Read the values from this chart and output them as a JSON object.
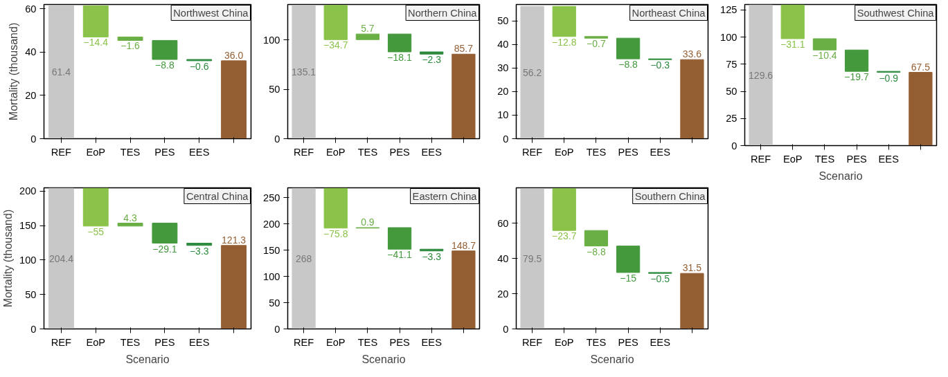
{
  "chart_data": [
    {
      "type": "bar",
      "title": "Northwest China",
      "ylabel": "Mortality (thousand)",
      "categories": [
        "REF",
        "EoP",
        "TES",
        "PES",
        "EES",
        null
      ],
      "values": [
        61.4,
        -14.4,
        -1.6,
        -8.8,
        -0.6,
        36.0
      ],
      "base": [
        0,
        61.4,
        47.0,
        45.4,
        36.6,
        0
      ],
      "value_labels": [
        "61.4",
        "−14.4",
        "−1.6",
        "−8.8",
        "−0.6",
        "36.0"
      ],
      "colors": [
        "#c8c8c8",
        "#8bc34a",
        "#6aaf45",
        "#43993c",
        "#2d8a3e",
        "#945e33"
      ],
      "ylim": [
        0,
        62
      ],
      "yticks": [
        0,
        20,
        40,
        60
      ]
    },
    {
      "type": "bar",
      "title": "Northern China",
      "categories": [
        "REF",
        "EoP",
        "TES",
        "PES",
        "EES",
        null
      ],
      "values": [
        135.1,
        -34.7,
        5.7,
        -18.1,
        -2.3,
        85.7
      ],
      "base": [
        0,
        135.1,
        100.4,
        106.1,
        88.0,
        0
      ],
      "value_labels": [
        "135.1",
        "−34.7",
        "5.7",
        "−18.1",
        "−2.3",
        "85.7"
      ],
      "colors": [
        "#c8c8c8",
        "#8bc34a",
        "#6aaf45",
        "#43993c",
        "#2d8a3e",
        "#945e33"
      ],
      "ylim": [
        0,
        136
      ],
      "yticks": [
        0,
        50,
        100
      ]
    },
    {
      "type": "bar",
      "title": "Northeast China",
      "categories": [
        "REF",
        "EoP",
        "TES",
        "PES",
        "EES",
        null
      ],
      "values": [
        56.2,
        -12.8,
        -0.7,
        -8.8,
        -0.3,
        33.6
      ],
      "base": [
        0,
        56.2,
        43.4,
        42.7,
        33.9,
        0
      ],
      "value_labels": [
        "56.2",
        "−12.8",
        "−0.7",
        "−8.8",
        "−0.3",
        "33.6"
      ],
      "colors": [
        "#c8c8c8",
        "#8bc34a",
        "#6aaf45",
        "#43993c",
        "#2d8a3e",
        "#945e33"
      ],
      "ylim": [
        0,
        57
      ],
      "yticks": [
        0,
        10,
        20,
        30,
        40,
        50
      ]
    },
    {
      "type": "bar",
      "title": "Southwest China",
      "xlabel": "Scenario",
      "categories": [
        "REF",
        "EoP",
        "TES",
        "PES",
        "EES",
        null
      ],
      "values": [
        129.6,
        -31.1,
        -10.4,
        -19.7,
        -0.9,
        67.5
      ],
      "base": [
        0,
        129.6,
        98.5,
        88.1,
        68.4,
        0
      ],
      "value_labels": [
        "129.6",
        "−31.1",
        "−10.4",
        "−19.7",
        "−0.9",
        "67.5"
      ],
      "colors": [
        "#c8c8c8",
        "#8bc34a",
        "#6aaf45",
        "#43993c",
        "#2d8a3e",
        "#945e33"
      ],
      "ylim": [
        0,
        130
      ],
      "yticks": [
        0,
        25,
        50,
        75,
        100,
        125
      ]
    },
    {
      "type": "bar",
      "title": "Central China",
      "xlabel": "Scenario",
      "ylabel": "Mortality (thousand)",
      "categories": [
        "REF",
        "EoP",
        "TES",
        "PES",
        "EES",
        null
      ],
      "values": [
        204.4,
        -55,
        4.3,
        -29.1,
        -3.3,
        121.3
      ],
      "base": [
        0,
        204.4,
        149.4,
        153.7,
        124.6,
        0
      ],
      "value_labels": [
        "204.4",
        "−55",
        "4.3",
        "−29.1",
        "−3.3",
        "121.3"
      ],
      "colors": [
        "#c8c8c8",
        "#8bc34a",
        "#6aaf45",
        "#43993c",
        "#2d8a3e",
        "#945e33"
      ],
      "ylim": [
        0,
        205
      ],
      "yticks": [
        0,
        50,
        100,
        150,
        200
      ]
    },
    {
      "type": "bar",
      "title": "Eastern China",
      "xlabel": "Scenario",
      "categories": [
        "REF",
        "EoP",
        "TES",
        "PES",
        "EES",
        null
      ],
      "values": [
        268,
        -75.8,
        0.9,
        -41.1,
        -3.3,
        148.7
      ],
      "base": [
        0,
        268,
        192.2,
        193.1,
        152.0,
        0
      ],
      "value_labels": [
        "268",
        "−75.8",
        "0.9",
        "−41.1",
        "−3.3",
        "148.7"
      ],
      "colors": [
        "#c8c8c8",
        "#8bc34a",
        "#6aaf45",
        "#43993c",
        "#2d8a3e",
        "#945e33"
      ],
      "ylim": [
        0,
        269
      ],
      "yticks": [
        0,
        50,
        100,
        150,
        200,
        250
      ]
    },
    {
      "type": "bar",
      "title": "Southern China",
      "xlabel": "Scenario",
      "categories": [
        "REF",
        "EoP",
        "TES",
        "PES",
        "EES",
        null
      ],
      "values": [
        79.5,
        -23.7,
        -8.8,
        -15,
        -0.5,
        31.5
      ],
      "base": [
        0,
        79.5,
        55.8,
        47.0,
        32.0,
        0
      ],
      "value_labels": [
        "79.5",
        "−23.7",
        "−8.8",
        "−15",
        "−0.5",
        "31.5"
      ],
      "colors": [
        "#c8c8c8",
        "#8bc34a",
        "#6aaf45",
        "#43993c",
        "#2d8a3e",
        "#945e33"
      ],
      "ylim": [
        0,
        80
      ],
      "yticks": [
        0,
        20,
        40,
        60
      ]
    }
  ]
}
